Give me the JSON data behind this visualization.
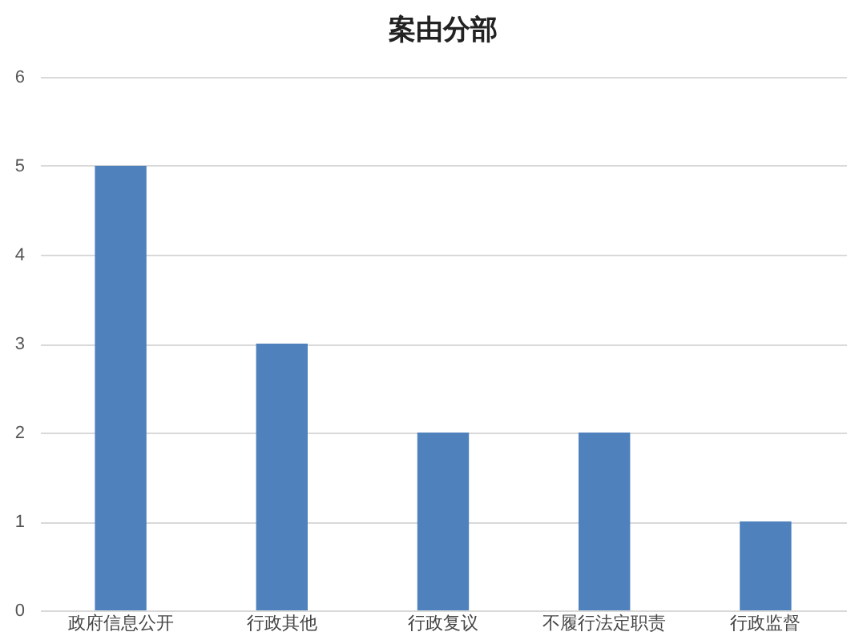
{
  "chart_data": {
    "type": "bar",
    "title": "案由分部",
    "categories": [
      "政府信息公开",
      "行政其他",
      "行政复议",
      "不履行法定职责",
      "行政监督"
    ],
    "values": [
      5,
      3,
      2,
      2,
      1
    ],
    "color": "#4f81bd",
    "ylim": [
      0,
      6
    ],
    "yticks": [
      0,
      1,
      2,
      3,
      4,
      5,
      6
    ],
    "grid": "y"
  }
}
